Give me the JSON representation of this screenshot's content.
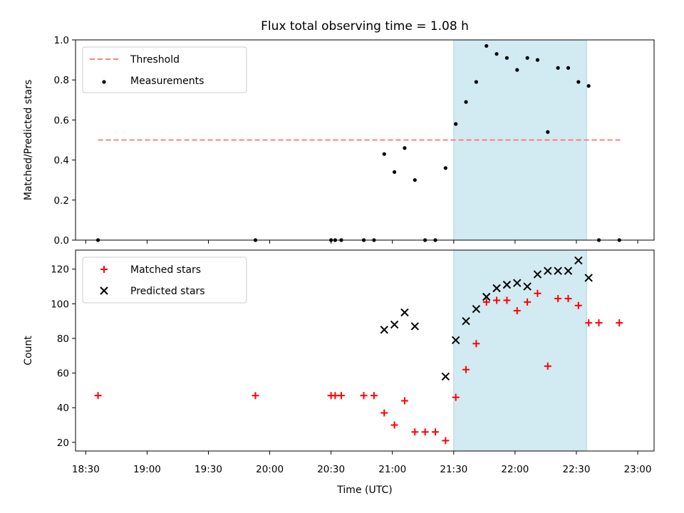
{
  "chart_data": {
    "type": "scatter",
    "title": "Flux total observing time = 1.08 h",
    "xlabel": "Time (UTC)",
    "x_tick_labels": [
      "18:30",
      "19:00",
      "19:30",
      "20:00",
      "20:30",
      "21:00",
      "21:30",
      "22:00",
      "22:30",
      "23:00"
    ],
    "highlight_span": {
      "start": "21:30",
      "end": "22:35",
      "color": "#add8e6"
    },
    "panels": [
      {
        "name": "ratio",
        "ylabel": "Matched/Predicted stars",
        "ylim": [
          0,
          1.0
        ],
        "yticks": [
          0.0,
          0.2,
          0.4,
          0.6,
          0.8,
          1.0
        ],
        "y_tick_labels": [
          "0.0",
          "0.2",
          "0.4",
          "0.6",
          "0.8",
          "1.0"
        ],
        "legend_position": "top-left",
        "threshold": {
          "name": "Threshold",
          "value": 0.5,
          "x_start": "18:36",
          "x_end": "22:52",
          "color": "#ff7f7f"
        },
        "series": [
          {
            "name": "Measurements",
            "marker": "dot",
            "color": "#000000",
            "points": [
              {
                "x": "18:36",
                "y": 0.0
              },
              {
                "x": "19:53",
                "y": 0.0
              },
              {
                "x": "20:30",
                "y": 0.0
              },
              {
                "x": "20:32",
                "y": 0.0
              },
              {
                "x": "20:35",
                "y": 0.0
              },
              {
                "x": "20:46",
                "y": 0.0
              },
              {
                "x": "20:51",
                "y": 0.0
              },
              {
                "x": "20:56",
                "y": 0.43
              },
              {
                "x": "21:01",
                "y": 0.34
              },
              {
                "x": "21:06",
                "y": 0.46
              },
              {
                "x": "21:11",
                "y": 0.3
              },
              {
                "x": "21:16",
                "y": 0.0
              },
              {
                "x": "21:21",
                "y": 0.0
              },
              {
                "x": "21:26",
                "y": 0.36
              },
              {
                "x": "21:31",
                "y": 0.58
              },
              {
                "x": "21:36",
                "y": 0.69
              },
              {
                "x": "21:41",
                "y": 0.79
              },
              {
                "x": "21:46",
                "y": 0.97
              },
              {
                "x": "21:51",
                "y": 0.93
              },
              {
                "x": "21:56",
                "y": 0.91
              },
              {
                "x": "22:01",
                "y": 0.85
              },
              {
                "x": "22:06",
                "y": 0.91
              },
              {
                "x": "22:11",
                "y": 0.9
              },
              {
                "x": "22:16",
                "y": 0.54
              },
              {
                "x": "22:21",
                "y": 0.86
              },
              {
                "x": "22:26",
                "y": 0.86
              },
              {
                "x": "22:31",
                "y": 0.79
              },
              {
                "x": "22:36",
                "y": 0.77
              },
              {
                "x": "22:41",
                "y": 0.0
              },
              {
                "x": "22:51",
                "y": 0.0
              }
            ]
          }
        ]
      },
      {
        "name": "counts",
        "ylabel": "Count",
        "ylim": [
          15,
          131
        ],
        "yticks": [
          20,
          40,
          60,
          80,
          100,
          120
        ],
        "y_tick_labels": [
          "20",
          "40",
          "60",
          "80",
          "100",
          "120"
        ],
        "legend_position": "top-left",
        "series": [
          {
            "name": "Matched stars",
            "marker": "plus",
            "color": "#ff0000",
            "points": [
              {
                "x": "18:36",
                "y": 47
              },
              {
                "x": "19:53",
                "y": 47
              },
              {
                "x": "20:30",
                "y": 47
              },
              {
                "x": "20:32",
                "y": 47
              },
              {
                "x": "20:35",
                "y": 47
              },
              {
                "x": "20:46",
                "y": 47
              },
              {
                "x": "20:51",
                "y": 47
              },
              {
                "x": "20:56",
                "y": 37
              },
              {
                "x": "21:01",
                "y": 30
              },
              {
                "x": "21:06",
                "y": 44
              },
              {
                "x": "21:11",
                "y": 26
              },
              {
                "x": "21:16",
                "y": 26
              },
              {
                "x": "21:21",
                "y": 26
              },
              {
                "x": "21:26",
                "y": 21
              },
              {
                "x": "21:31",
                "y": 46
              },
              {
                "x": "21:36",
                "y": 62
              },
              {
                "x": "21:41",
                "y": 77
              },
              {
                "x": "21:46",
                "y": 101
              },
              {
                "x": "21:51",
                "y": 102
              },
              {
                "x": "21:56",
                "y": 102
              },
              {
                "x": "22:01",
                "y": 96
              },
              {
                "x": "22:06",
                "y": 101
              },
              {
                "x": "22:11",
                "y": 106
              },
              {
                "x": "22:16",
                "y": 64
              },
              {
                "x": "22:21",
                "y": 103
              },
              {
                "x": "22:26",
                "y": 103
              },
              {
                "x": "22:31",
                "y": 99
              },
              {
                "x": "22:36",
                "y": 89
              },
              {
                "x": "22:41",
                "y": 89
              },
              {
                "x": "22:51",
                "y": 89
              }
            ]
          },
          {
            "name": "Predicted stars",
            "marker": "x",
            "color": "#000000",
            "points": [
              {
                "x": "20:56",
                "y": 85
              },
              {
                "x": "21:01",
                "y": 88
              },
              {
                "x": "21:06",
                "y": 95
              },
              {
                "x": "21:11",
                "y": 87
              },
              {
                "x": "21:26",
                "y": 58
              },
              {
                "x": "21:31",
                "y": 79
              },
              {
                "x": "21:36",
                "y": 90
              },
              {
                "x": "21:41",
                "y": 97
              },
              {
                "x": "21:46",
                "y": 104
              },
              {
                "x": "21:51",
                "y": 109
              },
              {
                "x": "21:56",
                "y": 111
              },
              {
                "x": "22:01",
                "y": 112
              },
              {
                "x": "22:06",
                "y": 110
              },
              {
                "x": "22:11",
                "y": 117
              },
              {
                "x": "22:16",
                "y": 119
              },
              {
                "x": "22:21",
                "y": 119
              },
              {
                "x": "22:26",
                "y": 119
              },
              {
                "x": "22:31",
                "y": 125
              },
              {
                "x": "22:36",
                "y": 115
              }
            ]
          }
        ]
      }
    ]
  }
}
